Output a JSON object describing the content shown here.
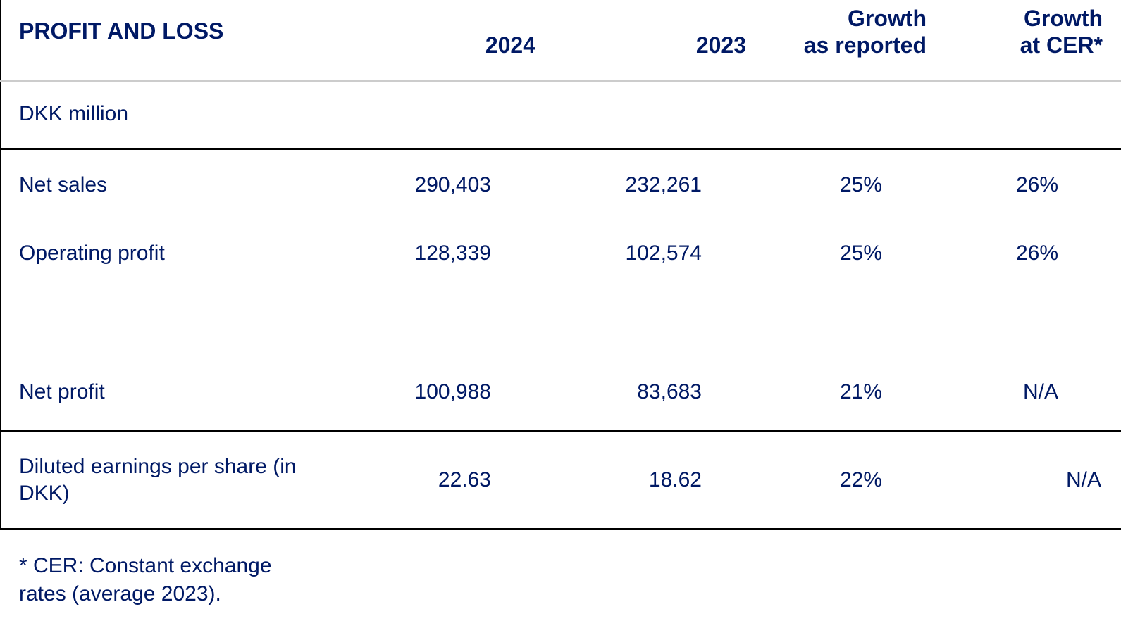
{
  "table": {
    "title": "PROFIT AND LOSS",
    "unit_label": "DKK million",
    "columns": [
      {
        "line1": "2024"
      },
      {
        "line1": "2023"
      },
      {
        "line1": "Growth",
        "line2": "as reported"
      },
      {
        "line1": "Growth",
        "line2": "at CER*"
      }
    ],
    "rows": [
      {
        "label": "Net sales",
        "values": [
          "290,403",
          "232,261",
          "25%",
          "26%"
        ]
      },
      {
        "label": "Operating profit",
        "values": [
          "128,339",
          "102,574",
          "25%",
          "26%"
        ]
      },
      {
        "label": "Net profit",
        "values": [
          "100,988",
          "83,683",
          "21%",
          "N/A"
        ]
      },
      {
        "label": "Diluted earnings per share (in DKK)",
        "values": [
          "22.63",
          "18.62",
          "22%",
          "N/A"
        ]
      }
    ],
    "footnote": "* CER: Constant exchange rates (average 2023)."
  },
  "colors": {
    "text_navy": "#001965",
    "rule_dark": "#000000",
    "rule_light": "#cccccc"
  }
}
